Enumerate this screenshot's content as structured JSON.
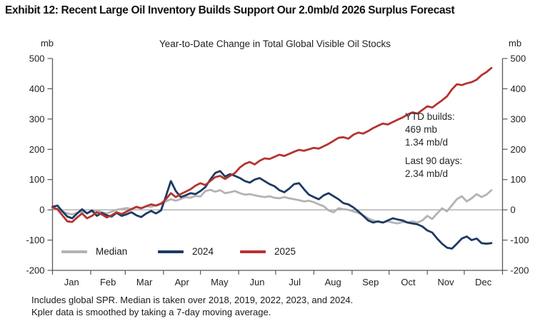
{
  "exhibit_title": "Exhibit 12: Recent Large Oil Inventory Builds Support Our 2.0mb/d 2026 Surplus Forecast",
  "chart_data": {
    "type": "line",
    "title": "Year-to-Date Change in Total Global Visible Oil Stocks",
    "y_axis": {
      "unit": "mb",
      "min": -200,
      "max": 500,
      "step": 100,
      "tick_labels": [
        "500",
        "400",
        "300",
        "200",
        "100",
        "0",
        "-100",
        "-200"
      ],
      "shown_on_both_sides": true
    },
    "x_axis": {
      "month_labels": [
        "Jan",
        "Feb",
        "Mar",
        "Apr",
        "May",
        "Jun",
        "Jul",
        "Aug",
        "Sep",
        "Oct",
        "Nov",
        "Dec"
      ],
      "month_start_days": [
        0,
        31,
        59,
        90,
        120,
        151,
        181,
        212,
        243,
        273,
        304,
        334,
        365
      ],
      "days_in_year": 365
    },
    "grid": {
      "zero_line": true
    },
    "legend_position": "inside-bottom-left",
    "axis_color": "#595959",
    "zero_line_color": "#8c8c8c",
    "days": [
      0,
      4,
      8,
      12,
      16,
      20,
      24,
      28,
      32,
      36,
      40,
      44,
      48,
      52,
      56,
      60,
      64,
      68,
      72,
      76,
      80,
      84,
      88,
      92,
      96,
      100,
      104,
      108,
      112,
      116,
      120,
      124,
      128,
      132,
      136,
      140,
      144,
      148,
      152,
      156,
      160,
      164,
      168,
      172,
      176,
      180,
      184,
      188,
      192,
      196,
      200,
      204,
      208,
      212,
      216,
      220,
      224,
      228,
      232,
      236,
      240,
      244,
      248,
      252,
      256,
      260,
      264,
      268,
      272,
      276,
      280,
      284,
      288,
      292,
      296,
      300,
      304,
      308,
      312,
      316,
      320,
      324,
      328,
      332,
      336,
      340,
      344,
      348,
      352,
      356
    ],
    "series": [
      {
        "name": "Median",
        "color": "#b3b3b3",
        "values": [
          5,
          3,
          -5,
          -12,
          -15,
          -10,
          -5,
          -10,
          -5,
          -2,
          -8,
          -12,
          -6,
          0,
          3,
          6,
          3,
          8,
          6,
          12,
          10,
          15,
          22,
          28,
          35,
          30,
          36,
          42,
          40,
          46,
          44,
          62,
          66,
          60,
          65,
          55,
          58,
          62,
          55,
          50,
          52,
          48,
          45,
          42,
          45,
          40,
          38,
          42,
          38,
          35,
          32,
          28,
          30,
          25,
          18,
          12,
          -2,
          -8,
          5,
          2,
          0,
          -5,
          -10,
          -18,
          -28,
          -35,
          -40,
          -42,
          -38,
          -42,
          -45,
          -40,
          -42,
          -38,
          -42,
          -35,
          -20,
          -30,
          -12,
          5,
          -5,
          15,
          35,
          45,
          28,
          38,
          52,
          42,
          50,
          65
        ]
      },
      {
        "name": "2024",
        "color": "#1b3a63",
        "values": [
          10,
          14,
          -5,
          -22,
          -28,
          -12,
          2,
          -12,
          -2,
          -20,
          -10,
          -18,
          -22,
          -10,
          -20,
          -15,
          -8,
          -18,
          -24,
          -12,
          -4,
          -12,
          -2,
          45,
          95,
          62,
          42,
          48,
          55,
          52,
          62,
          75,
          100,
          122,
          128,
          110,
          118,
          112,
          105,
          95,
          90,
          100,
          105,
          95,
          85,
          78,
          65,
          58,
          70,
          85,
          88,
          68,
          50,
          42,
          35,
          48,
          55,
          45,
          35,
          22,
          18,
          8,
          -5,
          -20,
          -35,
          -42,
          -38,
          -42,
          -35,
          -28,
          -32,
          -35,
          -42,
          -45,
          -48,
          -55,
          -68,
          -75,
          -95,
          -112,
          -125,
          -128,
          -112,
          -95,
          -88,
          -100,
          -95,
          -110,
          -112,
          -110
        ]
      },
      {
        "name": "2025",
        "color": "#b5332e",
        "values": [
          8,
          2,
          -18,
          -38,
          -40,
          -25,
          -12,
          -28,
          -20,
          -8,
          -15,
          -25,
          -18,
          -8,
          -14,
          -6,
          2,
          10,
          5,
          12,
          18,
          14,
          20,
          35,
          55,
          42,
          52,
          60,
          68,
          80,
          88,
          82,
          95,
          108,
          112,
          102,
          112,
          122,
          140,
          152,
          158,
          150,
          162,
          170,
          168,
          175,
          182,
          178,
          185,
          192,
          198,
          195,
          200,
          205,
          202,
          210,
          218,
          228,
          238,
          240,
          235,
          248,
          255,
          252,
          260,
          270,
          278,
          285,
          282,
          290,
          298,
          305,
          315,
          322,
          318,
          330,
          342,
          338,
          350,
          362,
          375,
          398,
          415,
          412,
          418,
          422,
          430,
          445,
          455,
          469
        ]
      }
    ],
    "annotation": {
      "title": "YTD builds:",
      "value": "469 mb",
      "rate": "1.34 mb/d",
      "subtitle": "Last 90 days:",
      "subrate": "2.34 mb/d"
    }
  },
  "footnote": {
    "line1": "Includes global SPR. Median is taken over 2018, 2019, 2022, 2023, and 2024.",
    "line2": "Kpler data is smoothed by taking a 7-day moving average."
  }
}
